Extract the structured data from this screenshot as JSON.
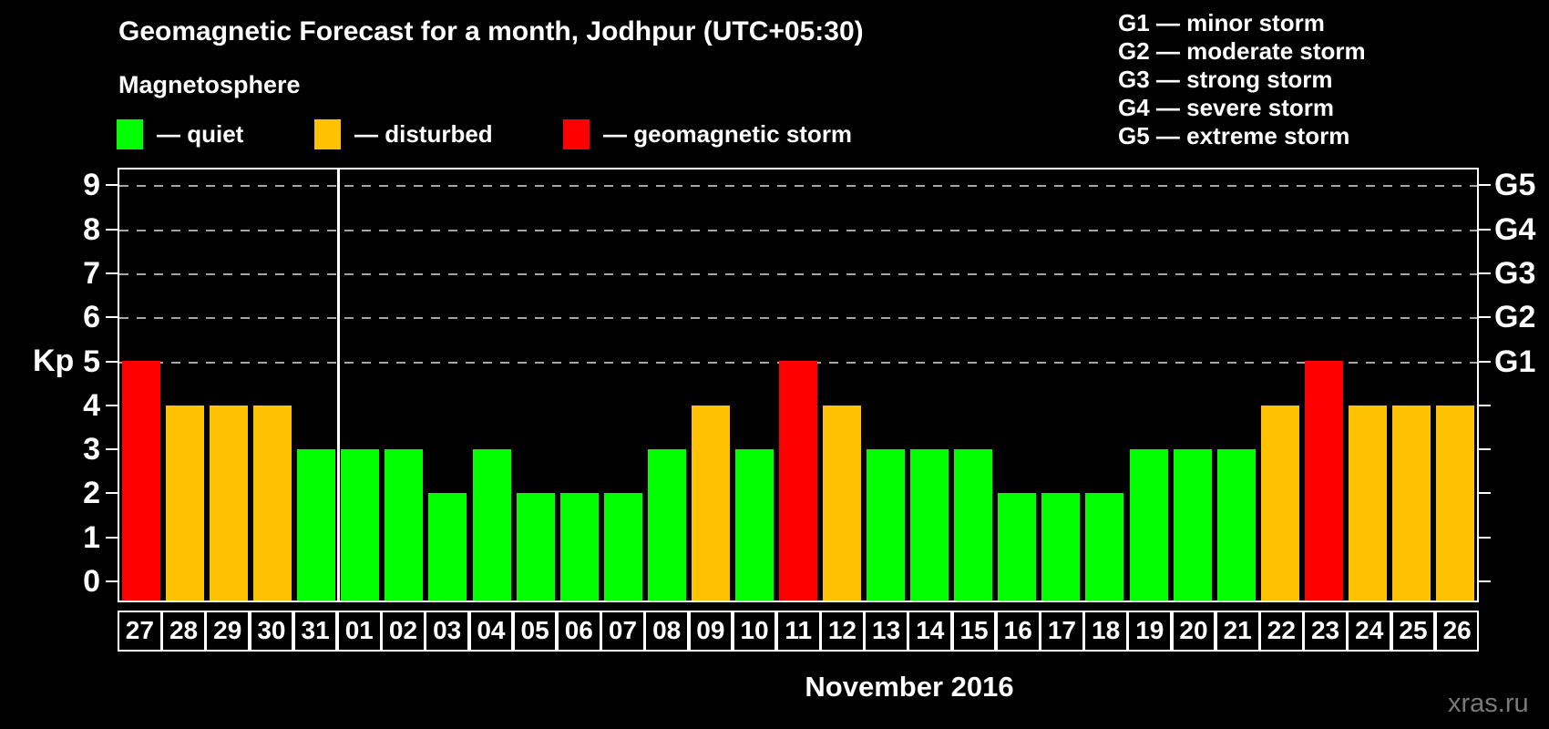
{
  "title": "Geomagnetic Forecast for a month, Jodhpur (UTC+05:30)",
  "legend": {
    "heading": "Magnetosphere",
    "items": [
      {
        "key": "quiet",
        "label": "— quiet",
        "color": "#00ff00"
      },
      {
        "key": "disturbed",
        "label": "— disturbed",
        "color": "#ffc200"
      },
      {
        "key": "storm",
        "label": "— geomagnetic storm",
        "color": "#ff0000"
      }
    ]
  },
  "g_storm_legend": [
    "G1 — minor storm",
    "G2 — moderate storm",
    "G3 — strong storm",
    "G4 — severe storm",
    "G5 — extreme storm"
  ],
  "axes": {
    "y_label": "Kp",
    "y_ticks": [
      "0",
      "1",
      "2",
      "3",
      "4",
      "5",
      "6",
      "7",
      "8",
      "9"
    ],
    "right_tick_labels": [
      "G1",
      "G2",
      "G3",
      "G4",
      "G5"
    ],
    "grid_levels": [
      5,
      6,
      7,
      8,
      9
    ]
  },
  "month_label": "November 2016",
  "watermark": "xras.ru",
  "colors": {
    "background": "#000000",
    "axis": "#ffffff",
    "grid": "#a6a6a6",
    "quiet": "#00ff00",
    "disturbed": "#ffc200",
    "storm": "#ff0000"
  },
  "chart_data": {
    "type": "bar",
    "title": "Geomagnetic Forecast for a month, Jodhpur (UTC+05:30)",
    "xlabel": "November 2016",
    "ylabel": "Kp",
    "ylim": [
      0,
      9
    ],
    "grid": "dashed horizontal lines at Kp 5-9 (G1-G5)",
    "legend_position": "top",
    "categories": [
      "27",
      "28",
      "29",
      "30",
      "31",
      "01",
      "02",
      "03",
      "04",
      "05",
      "06",
      "07",
      "08",
      "09",
      "10",
      "11",
      "12",
      "13",
      "14",
      "15",
      "16",
      "17",
      "18",
      "19",
      "20",
      "21",
      "22",
      "23",
      "24",
      "25",
      "26"
    ],
    "values": [
      5,
      4,
      4,
      4,
      3,
      3,
      3,
      2,
      3,
      2,
      2,
      2,
      3,
      4,
      3,
      5,
      4,
      3,
      3,
      3,
      2,
      2,
      2,
      3,
      3,
      3,
      4,
      5,
      4,
      4,
      4
    ],
    "statuses": [
      "storm",
      "disturbed",
      "disturbed",
      "disturbed",
      "quiet",
      "quiet",
      "quiet",
      "quiet",
      "quiet",
      "quiet",
      "quiet",
      "quiet",
      "quiet",
      "disturbed",
      "quiet",
      "storm",
      "disturbed",
      "quiet",
      "quiet",
      "quiet",
      "quiet",
      "quiet",
      "quiet",
      "quiet",
      "quiet",
      "quiet",
      "disturbed",
      "storm",
      "disturbed",
      "disturbed",
      "disturbed"
    ],
    "month_boundary_after_index": 4,
    "g_thresholds": {
      "G1": 5,
      "G2": 6,
      "G3": 7,
      "G4": 8,
      "G5": 9
    }
  }
}
